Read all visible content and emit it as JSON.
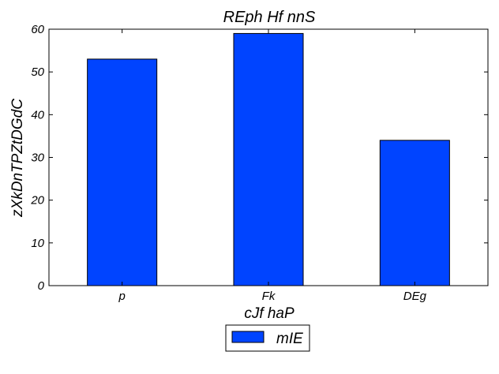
{
  "chart_data": {
    "type": "bar",
    "title": "REph Hf nnS",
    "xlabel": "cJf haP",
    "ylabel": "zXkDnTPZtDGdC",
    "categories": [
      "p",
      "Fk",
      "DEg"
    ],
    "series": [
      {
        "name": "mIE",
        "values": [
          53,
          59,
          34
        ],
        "color": "#0044ff"
      }
    ],
    "ylim": [
      0,
      60
    ],
    "yticks": [
      0,
      10,
      20,
      30,
      40,
      50,
      60
    ],
    "grid": false,
    "legend_position": "bottom-center"
  }
}
